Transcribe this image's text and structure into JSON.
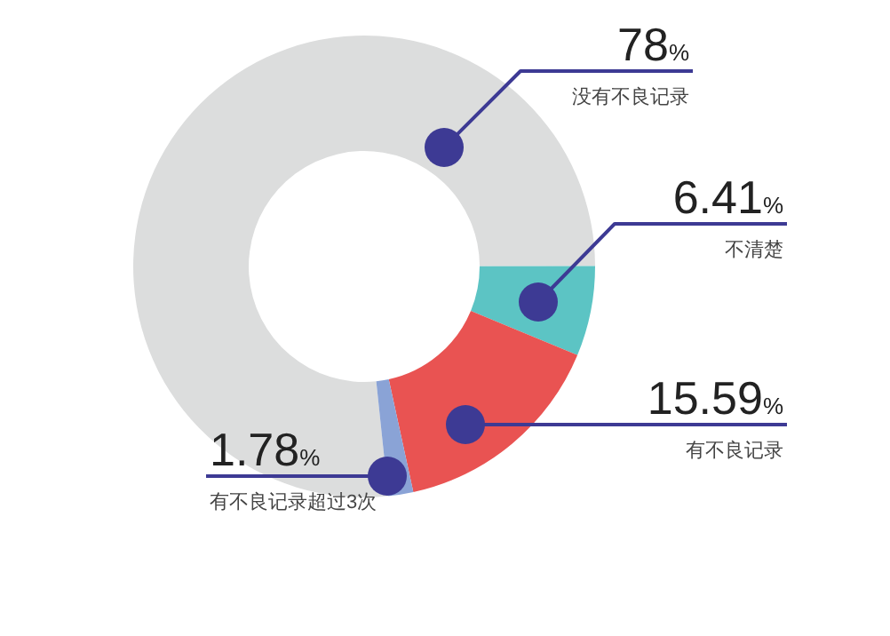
{
  "chart_data": {
    "type": "donut",
    "categories": [
      "没有不良记录",
      "不清楚",
      "有不良记录",
      "有不良记录超过3次"
    ],
    "values": [
      78,
      6.41,
      15.59,
      1.78
    ],
    "colors": [
      "#dcdddd",
      "#5cc4c4",
      "#e95352",
      "#8aa3d6"
    ],
    "value_labels": [
      "78%",
      "6.41%",
      "15.59%",
      "1.78%"
    ]
  }
}
